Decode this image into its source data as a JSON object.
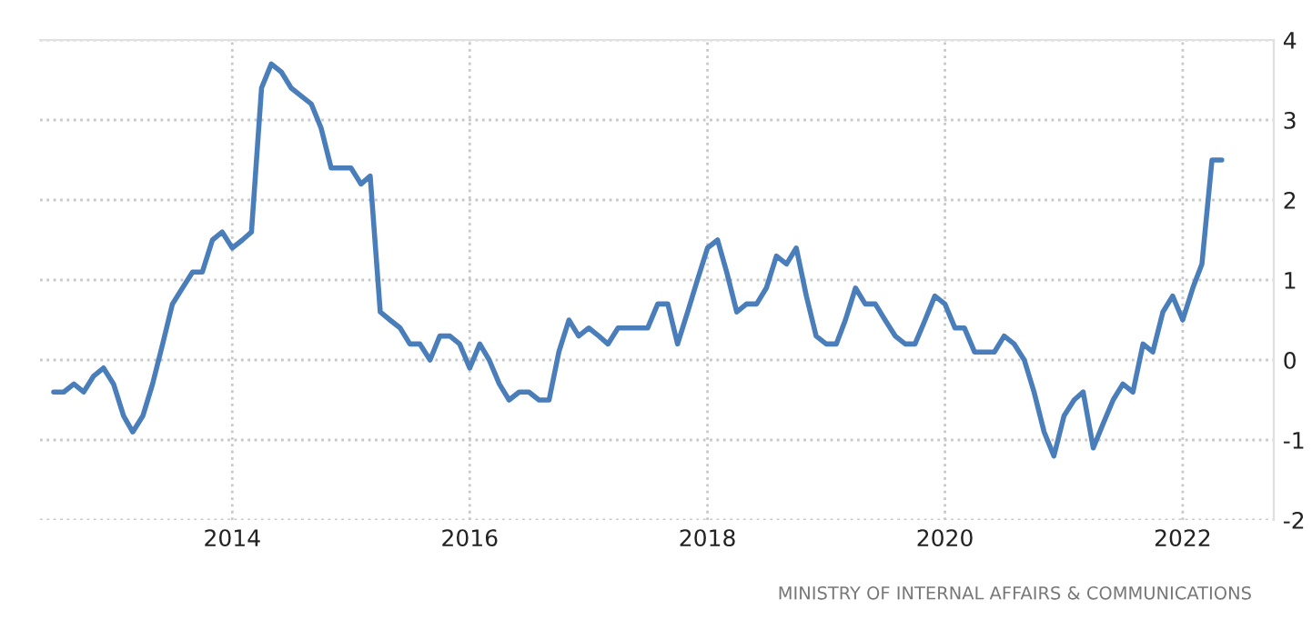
{
  "chart_data": {
    "type": "line",
    "x": [
      "2012-07",
      "2012-08",
      "2012-09",
      "2012-10",
      "2012-11",
      "2012-12",
      "2013-01",
      "2013-02",
      "2013-03",
      "2013-04",
      "2013-05",
      "2013-06",
      "2013-07",
      "2013-08",
      "2013-09",
      "2013-10",
      "2013-11",
      "2013-12",
      "2014-01",
      "2014-02",
      "2014-03",
      "2014-04",
      "2014-05",
      "2014-06",
      "2014-07",
      "2014-08",
      "2014-09",
      "2014-10",
      "2014-11",
      "2014-12",
      "2015-01",
      "2015-02",
      "2015-03",
      "2015-04",
      "2015-05",
      "2015-06",
      "2015-07",
      "2015-08",
      "2015-09",
      "2015-10",
      "2015-11",
      "2015-12",
      "2016-01",
      "2016-02",
      "2016-03",
      "2016-04",
      "2016-05",
      "2016-06",
      "2016-07",
      "2016-08",
      "2016-09",
      "2016-10",
      "2016-11",
      "2016-12",
      "2017-01",
      "2017-02",
      "2017-03",
      "2017-04",
      "2017-05",
      "2017-06",
      "2017-07",
      "2017-08",
      "2017-09",
      "2017-10",
      "2017-11",
      "2017-12",
      "2018-01",
      "2018-02",
      "2018-03",
      "2018-04",
      "2018-05",
      "2018-06",
      "2018-07",
      "2018-08",
      "2018-09",
      "2018-10",
      "2018-11",
      "2018-12",
      "2019-01",
      "2019-02",
      "2019-03",
      "2019-04",
      "2019-05",
      "2019-06",
      "2019-07",
      "2019-08",
      "2019-09",
      "2019-10",
      "2019-11",
      "2019-12",
      "2020-01",
      "2020-02",
      "2020-03",
      "2020-04",
      "2020-05",
      "2020-06",
      "2020-07",
      "2020-08",
      "2020-09",
      "2020-10",
      "2020-11",
      "2020-12",
      "2021-01",
      "2021-02",
      "2021-03",
      "2021-04",
      "2021-05",
      "2021-06",
      "2021-07",
      "2021-08",
      "2021-09",
      "2021-10",
      "2021-11",
      "2021-12",
      "2022-01",
      "2022-02",
      "2022-03",
      "2022-04",
      "2022-05"
    ],
    "series": [
      {
        "color": "#4a7ebb",
        "values": [
          -0.4,
          -0.4,
          -0.3,
          -0.4,
          -0.2,
          -0.1,
          -0.3,
          -0.7,
          -0.9,
          -0.7,
          -0.3,
          0.2,
          0.7,
          0.9,
          1.1,
          1.1,
          1.5,
          1.6,
          1.4,
          1.5,
          1.6,
          3.4,
          3.7,
          3.6,
          3.4,
          3.3,
          3.2,
          2.9,
          2.4,
          2.4,
          2.4,
          2.2,
          2.3,
          0.6,
          0.5,
          0.4,
          0.2,
          0.2,
          0.0,
          0.3,
          0.3,
          0.2,
          -0.1,
          0.2,
          0.0,
          -0.3,
          -0.5,
          -0.4,
          -0.4,
          -0.5,
          -0.5,
          0.1,
          0.5,
          0.3,
          0.4,
          0.3,
          0.2,
          0.4,
          0.4,
          0.4,
          0.4,
          0.7,
          0.7,
          0.2,
          0.6,
          1.0,
          1.4,
          1.5,
          1.1,
          0.6,
          0.7,
          0.7,
          0.9,
          1.3,
          1.2,
          1.4,
          0.8,
          0.3,
          0.2,
          0.2,
          0.5,
          0.9,
          0.7,
          0.7,
          0.5,
          0.3,
          0.2,
          0.2,
          0.5,
          0.8,
          0.7,
          0.4,
          0.4,
          0.1,
          0.1,
          0.1,
          0.3,
          0.2,
          0.0,
          -0.4,
          -0.9,
          -1.2,
          -0.7,
          -0.5,
          -0.4,
          -1.1,
          -0.8,
          -0.5,
          -0.3,
          -0.4,
          0.2,
          0.1,
          0.6,
          0.8,
          0.5,
          0.9,
          1.2,
          2.5,
          2.5
        ]
      }
    ],
    "xlim": [
      "2012-05-20",
      "2022-10-08"
    ],
    "xticks": [
      "2014",
      "2016",
      "2018",
      "2020",
      "2022"
    ],
    "ylim": [
      -2,
      4
    ],
    "yticks": [
      -2,
      -1,
      0,
      1,
      2,
      3,
      4
    ],
    "grid": true,
    "legend": false,
    "line_style": "solid",
    "marker": "none",
    "annotations": [
      "MINISTRY OF INTERNAL AFFAIRS & COMMUNICATIONS"
    ]
  }
}
